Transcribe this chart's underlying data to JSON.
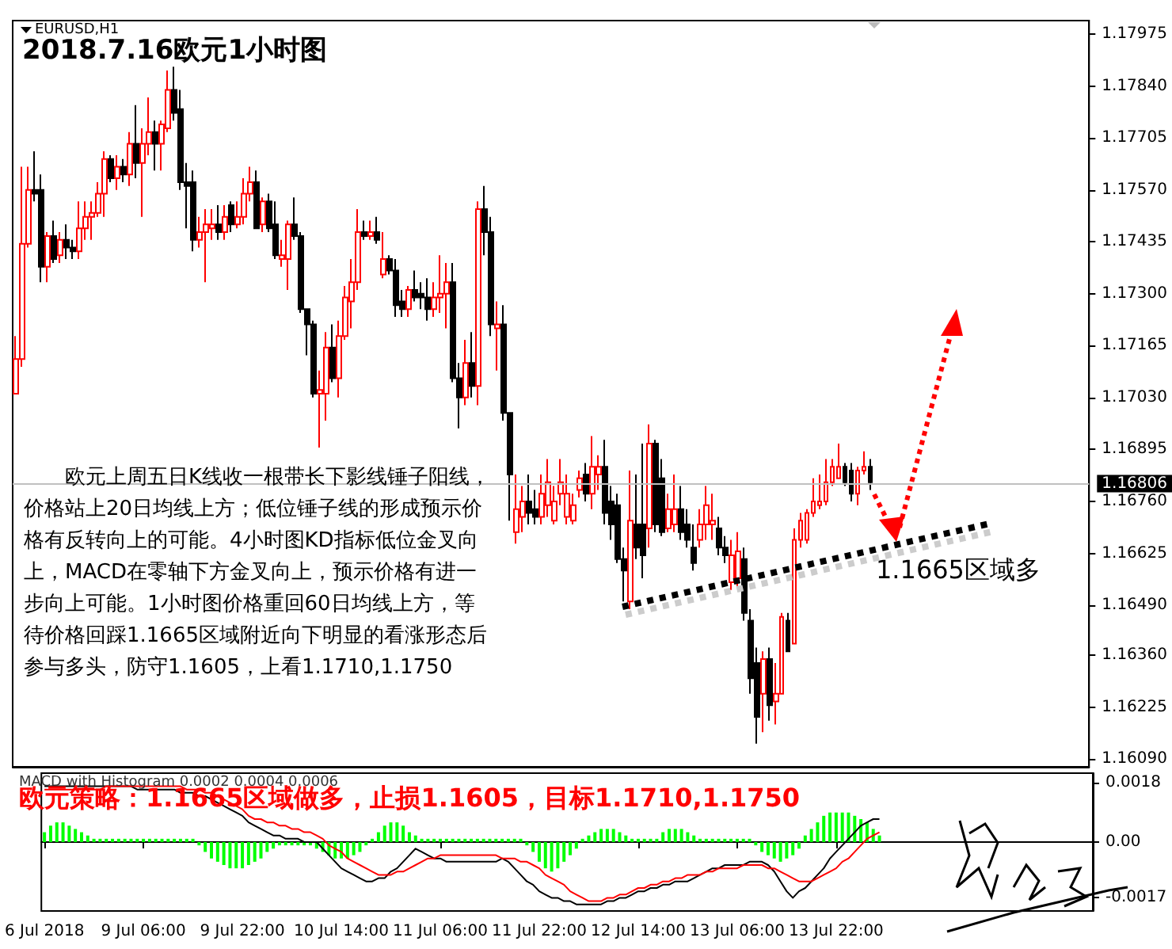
{
  "chart_data": [
    {
      "type": "candlestick",
      "title": "2018.7.16欧元1小时图",
      "categories": [
        null,
        null,
        null,
        null,
        null,
        null,
        null,
        null,
        null,
        null,
        null,
        null,
        null,
        null,
        null,
        null,
        null,
        null,
        null,
        null,
        null,
        null,
        null,
        null,
        null,
        null,
        null,
        null,
        null,
        null,
        null,
        null,
        null,
        null,
        null,
        null,
        null,
        null,
        null,
        null,
        null,
        null,
        null,
        null,
        null,
        null,
        null,
        null,
        null,
        null,
        null,
        null,
        null,
        null,
        null,
        null,
        null,
        null,
        null,
        null,
        null,
        null,
        null,
        null,
        null,
        null,
        null,
        null,
        null,
        null,
        null,
        null,
        null,
        null,
        null,
        null,
        null,
        null,
        null,
        null,
        null,
        null,
        null,
        null,
        null,
        null,
        null,
        null,
        null,
        null,
        null,
        null,
        null,
        null,
        null,
        null,
        null,
        null,
        null,
        null,
        null,
        null,
        null,
        null,
        null,
        null,
        null,
        null,
        null,
        null,
        null,
        null,
        null,
        null,
        null,
        null,
        null,
        null,
        null,
        null,
        null,
        null,
        null,
        null,
        null,
        null,
        null,
        null,
        null,
        null,
        null,
        null,
        null,
        null,
        null,
        null,
        null,
        null,
        null,
        null,
        null,
        null,
        null,
        null,
        null,
        null,
        null,
        null,
        null,
        null,
        null,
        null,
        null,
        null,
        null,
        null,
        null,
        null,
        null,
        null,
        null,
        null,
        null,
        null,
        null,
        null,
        null,
        null,
        null,
        null
      ],
      "ohlc": [
        [
          1.1704,
          1.1719,
          1.1704,
          1.1713
        ],
        [
          1.1713,
          1.1763,
          1.1711,
          1.1743
        ],
        [
          1.1743,
          1.1763,
          1.1742,
          1.1757
        ],
        [
          1.1757,
          1.1767,
          1.1754,
          1.1756
        ],
        [
          1.1757,
          1.1761,
          1.1733,
          1.1737
        ],
        [
          1.1737,
          1.1746,
          1.1733,
          1.1745
        ],
        [
          1.1745,
          1.1749,
          1.1738,
          1.1739
        ],
        [
          1.174,
          1.1746,
          1.1738,
          1.1744
        ],
        [
          1.1744,
          1.1748,
          1.1739,
          1.1742
        ],
        [
          1.1742,
          1.1744,
          1.1739,
          1.1741
        ],
        [
          1.1741,
          1.1754,
          1.1739,
          1.1747
        ],
        [
          1.1747,
          1.1754,
          1.1744,
          1.175
        ],
        [
          1.175,
          1.1754,
          1.1744,
          1.1751
        ],
        [
          1.1751,
          1.1759,
          1.175,
          1.1756
        ],
        [
          1.1756,
          1.1767,
          1.175,
          1.1765
        ],
        [
          1.1765,
          1.1766,
          1.1759,
          1.176
        ],
        [
          1.176,
          1.1766,
          1.1757,
          1.1763
        ],
        [
          1.1763,
          1.1765,
          1.1759,
          1.1761
        ],
        [
          1.1761,
          1.1772,
          1.1758,
          1.1769
        ],
        [
          1.1769,
          1.1779,
          1.176,
          1.1764
        ],
        [
          1.1764,
          1.1773,
          1.175,
          1.1769
        ],
        [
          1.1769,
          1.1781,
          1.1766,
          1.1772
        ],
        [
          1.1772,
          1.1775,
          1.1762,
          1.1769
        ],
        [
          1.1769,
          1.1775,
          1.1762,
          1.1774
        ],
        [
          1.1773,
          1.1788,
          1.1772,
          1.1783
        ],
        [
          1.1783,
          1.1789,
          1.1775,
          1.1777
        ],
        [
          1.1778,
          1.1783,
          1.1757,
          1.1759
        ],
        [
          1.1759,
          1.1764,
          1.1747,
          1.1758
        ],
        [
          1.1759,
          1.1762,
          1.1741,
          1.1744
        ],
        [
          1.1744,
          1.175,
          1.1742,
          1.1746
        ],
        [
          1.1746,
          1.1752,
          1.1733,
          1.1748
        ],
        [
          1.1747,
          1.1752,
          1.1744,
          1.1748
        ],
        [
          1.1748,
          1.1753,
          1.1744,
          1.1746
        ],
        [
          1.1746,
          1.1753,
          1.1744,
          1.175
        ],
        [
          1.1753,
          1.1754,
          1.1746,
          1.1748
        ],
        [
          1.1748,
          1.1754,
          1.1747,
          1.175
        ],
        [
          1.175,
          1.176,
          1.1748,
          1.1756
        ],
        [
          1.1756,
          1.1763,
          1.1754,
          1.1759
        ],
        [
          1.1759,
          1.1762,
          1.1747,
          1.1747
        ],
        [
          1.1748,
          1.1755,
          1.1746,
          1.1754
        ],
        [
          1.1754,
          1.1756,
          1.1746,
          1.1747
        ],
        [
          1.1748,
          1.1754,
          1.1739,
          1.174
        ],
        [
          1.1739,
          1.1744,
          1.1737,
          1.174
        ],
        [
          1.1739,
          1.1749,
          1.1731,
          1.1748
        ],
        [
          1.1748,
          1.1755,
          1.1744,
          1.1745
        ],
        [
          1.1745,
          1.1746,
          1.1725,
          1.1726
        ],
        [
          1.1726,
          1.1726,
          1.1714,
          1.1722
        ],
        [
          1.1722,
          1.1723,
          1.1703,
          1.1704
        ],
        [
          1.1704,
          1.171,
          1.169,
          1.1705
        ],
        [
          1.1704,
          1.172,
          1.1697,
          1.1716
        ],
        [
          1.1716,
          1.1722,
          1.1707,
          1.1708
        ],
        [
          1.1708,
          1.1723,
          1.1703,
          1.1719
        ],
        [
          1.1719,
          1.1732,
          1.1718,
          1.1729
        ],
        [
          1.1728,
          1.1739,
          1.1721,
          1.1733
        ],
        [
          1.1733,
          1.1752,
          1.1731,
          1.1746
        ],
        [
          1.1746,
          1.1749,
          1.1744,
          1.1745
        ],
        [
          1.1745,
          1.1749,
          1.1744,
          1.1746
        ],
        [
          1.1746,
          1.175,
          1.1743,
          1.1744
        ],
        [
          1.1735,
          1.1746,
          1.1734,
          1.1739
        ],
        [
          1.1739,
          1.174,
          1.1735,
          1.1736
        ],
        [
          1.1736,
          1.1739,
          1.1724,
          1.1727
        ],
        [
          1.1728,
          1.1731,
          1.1724,
          1.1726
        ],
        [
          1.1726,
          1.1732,
          1.1724,
          1.1731
        ],
        [
          1.1731,
          1.1736,
          1.1728,
          1.1729
        ],
        [
          1.173,
          1.1733,
          1.1726,
          1.1729
        ],
        [
          1.1729,
          1.1734,
          1.1723,
          1.1726
        ],
        [
          1.1726,
          1.1733,
          1.1724,
          1.1729
        ],
        [
          1.1729,
          1.174,
          1.1725,
          1.173
        ],
        [
          1.173,
          1.1738,
          1.1721,
          1.1733
        ],
        [
          1.1733,
          1.1738,
          1.1707,
          1.1708
        ],
        [
          1.1708,
          1.1712,
          1.1695,
          1.1703
        ],
        [
          1.1703,
          1.1718,
          1.1701,
          1.1712
        ],
        [
          1.1712,
          1.172,
          1.1703,
          1.1706
        ],
        [
          1.1706,
          1.1754,
          1.1701,
          1.1752
        ],
        [
          1.1752,
          1.1758,
          1.174,
          1.1746
        ],
        [
          1.1746,
          1.175,
          1.1719,
          1.1722
        ],
        [
          1.1721,
          1.1728,
          1.171,
          1.1722
        ],
        [
          1.1722,
          1.1727,
          1.1697,
          1.1699
        ],
        [
          1.1699,
          1.1699,
          1.1671,
          1.1683
        ],
        [
          1.1668,
          1.1683,
          1.1665,
          1.1674
        ],
        [
          1.1672,
          1.168,
          1.1668,
          1.1676
        ],
        [
          1.1676,
          1.1683,
          1.167,
          1.1673
        ],
        [
          1.1674,
          1.1679,
          1.167,
          1.1672
        ],
        [
          1.1672,
          1.1683,
          1.167,
          1.1678
        ],
        [
          1.1675,
          1.1687,
          1.1672,
          1.1681
        ],
        [
          1.1671,
          1.168,
          1.167,
          1.1676
        ],
        [
          1.1678,
          1.1687,
          1.1675,
          1.1681
        ],
        [
          1.1672,
          1.1683,
          1.167,
          1.1678
        ],
        [
          1.1671,
          1.1678,
          1.167,
          1.1675
        ],
        [
          1.1679,
          1.1684,
          1.1677,
          1.1682
        ],
        [
          1.1683,
          1.1686,
          1.1676,
          1.1678
        ],
        [
          1.1678,
          1.1693,
          1.1674,
          1.1685
        ],
        [
          1.1683,
          1.1688,
          1.1679,
          1.1685
        ],
        [
          1.1685,
          1.1692,
          1.167,
          1.1673
        ],
        [
          1.1676,
          1.168,
          1.1666,
          1.167
        ],
        [
          1.1675,
          1.1678,
          1.166,
          1.1661
        ],
        [
          1.1661,
          1.1664,
          1.165,
          1.1658
        ],
        [
          1.165,
          1.1684,
          1.1648,
          1.1671
        ],
        [
          1.167,
          1.1683,
          1.1661,
          1.1664
        ],
        [
          1.167,
          1.1691,
          1.1656,
          1.1662
        ],
        [
          1.1669,
          1.1696,
          1.1664,
          1.1691
        ],
        [
          1.1691,
          1.1692,
          1.1668,
          1.167
        ],
        [
          1.1682,
          1.1687,
          1.1667,
          1.1668
        ],
        [
          1.1669,
          1.1678,
          1.1668,
          1.1674
        ],
        [
          1.167,
          1.1683,
          1.1668,
          1.1674
        ],
        [
          1.1674,
          1.168,
          1.1666,
          1.1668
        ],
        [
          1.167,
          1.1674,
          1.1664,
          1.1666
        ],
        [
          1.1664,
          1.167,
          1.1658,
          1.166
        ],
        [
          1.1666,
          1.1674,
          1.1664,
          1.167
        ],
        [
          1.167,
          1.168,
          1.1666,
          1.1675
        ],
        [
          1.167,
          1.1678,
          1.1666,
          1.1671
        ],
        [
          1.1669,
          1.1672,
          1.1662,
          1.1664
        ],
        [
          1.1664,
          1.1667,
          1.166,
          1.1662
        ],
        [
          1.1655,
          1.1666,
          1.1653,
          1.1662
        ],
        [
          1.1656,
          1.1668,
          1.1654,
          1.1663
        ],
        [
          1.1661,
          1.1664,
          1.1645,
          1.1647
        ],
        [
          1.1645,
          1.1648,
          1.1626,
          1.163
        ],
        [
          1.1634,
          1.1638,
          1.1613,
          1.162
        ],
        [
          1.1626,
          1.1637,
          1.1616,
          1.1635
        ],
        [
          1.1635,
          1.1638,
          1.1619,
          1.1623
        ],
        [
          1.1624,
          1.1634,
          1.1618,
          1.1626
        ],
        [
          1.1626,
          1.1647,
          1.1626,
          1.1646
        ],
        [
          1.1645,
          1.1647,
          1.1637,
          1.1637
        ],
        [
          1.1639,
          1.1669,
          1.1639,
          1.1666
        ],
        [
          1.1666,
          1.1673,
          1.1664,
          1.1671
        ],
        [
          1.1666,
          1.1674,
          1.1665,
          1.1673
        ],
        [
          1.1673,
          1.1682,
          1.1672,
          1.1676
        ],
        [
          1.1675,
          1.1683,
          1.1674,
          1.1676
        ],
        [
          1.1676,
          1.1687,
          1.1675,
          1.1681
        ],
        [
          1.1681,
          1.1687,
          1.168,
          1.1685
        ],
        [
          1.1682,
          1.1691,
          1.1682,
          1.1685
        ],
        [
          1.1685,
          1.1686,
          1.168,
          1.1681
        ],
        [
          1.1684,
          1.1686,
          1.1676,
          1.1678
        ],
        [
          1.1678,
          1.1685,
          1.1675,
          1.1684
        ],
        [
          1.1684,
          1.1689,
          1.1683,
          1.1685
        ],
        [
          1.1685,
          1.1687,
          1.1679,
          1.1681
        ],
        null,
        null,
        null,
        null,
        null,
        null,
        null,
        null,
        null,
        null,
        null,
        null,
        null,
        null,
        null,
        null,
        null,
        null,
        null,
        null,
        null,
        null,
        null,
        null,
        null,
        null,
        null,
        null,
        null,
        null,
        null,
        null,
        null,
        null
      ],
      "colors": [
        "#ff0000",
        "#ff0000",
        "#ff0000",
        "#000000",
        "#000000",
        "#ff0000",
        "#000000",
        "#ff0000",
        "#000000",
        "#000000",
        "#ff0000",
        "#ff0000",
        "#ff0000",
        "#ff0000",
        "#ff0000",
        "#000000",
        "#ff0000",
        "#000000",
        "#ff0000",
        "#000000",
        "#ff0000",
        "#ff0000",
        "#000000",
        "#ff0000",
        "#ff0000",
        "#000000",
        "#000000",
        "#000000",
        "#000000",
        "#ff0000",
        "#ff0000",
        "#ff0000",
        "#000000",
        "#ff0000",
        "#000000",
        "#ff0000",
        "#ff0000",
        "#ff0000",
        "#000000",
        "#ff0000",
        "#000000",
        "#000000",
        "#ff0000",
        "#ff0000",
        "#000000",
        "#000000",
        "#000000",
        "#000000",
        "#ff0000",
        "#ff0000",
        "#000000",
        "#ff0000",
        "#ff0000",
        "#ff0000",
        "#ff0000",
        "#000000",
        "#ff0000",
        "#000000",
        "#ff0000",
        "#000000",
        "#000000",
        "#000000",
        "#ff0000",
        "#000000",
        "#000000",
        "#000000",
        "#ff0000",
        "#ff0000",
        "#ff0000",
        "#000000",
        "#000000",
        "#ff0000",
        "#000000",
        "#ff0000",
        "#000000",
        "#000000",
        "#ff0000",
        "#000000",
        "#000000",
        "#ff0000",
        "#ff0000",
        "#000000",
        "#000000",
        "#ff0000",
        "#ff0000",
        "#ff0000",
        "#ff0000",
        "#ff0000",
        "#ff0000",
        "#ff0000",
        "#000000",
        "#ff0000",
        "#ff0000",
        "#000000",
        "#000000",
        "#000000",
        "#000000",
        "#ff0000",
        "#000000",
        "#000000",
        "#ff0000",
        "#000000",
        "#000000",
        "#ff0000",
        "#ff0000",
        "#000000",
        "#000000",
        "#000000",
        "#ff0000",
        "#ff0000",
        "#ff0000",
        "#000000",
        "#000000",
        "#ff0000",
        "#ff0000",
        "#000000",
        "#000000",
        "#000000",
        "#ff0000",
        "#000000",
        "#ff0000",
        "#ff0000",
        "#000000",
        "#ff0000",
        "#ff0000",
        "#ff0000",
        "#ff0000",
        "#ff0000",
        "#ff0000",
        "#ff0000",
        "#ff0000",
        "#000000",
        "#000000",
        "#ff0000",
        "#ff0000",
        "#000000",
        null,
        null,
        null,
        null,
        null,
        null,
        null,
        null,
        null,
        null,
        null,
        null,
        null,
        null,
        null,
        null,
        null,
        null,
        null,
        null,
        null,
        null,
        null,
        null,
        null,
        null,
        null,
        null,
        null,
        null,
        null,
        null,
        null,
        null
      ],
      "ylim": [
        1.1607,
        1.1801
      ],
      "yticks": [
        1.17975,
        {
          "value": 1.1784,
          "label": "1.17840"
        },
        1.17705,
        {
          "value": 1.1757,
          "label": "1.17570"
        },
        1.17435,
        {
          "value": 1.173,
          "label": "1.17300"
        },
        1.17165,
        {
          "value": 1.1703,
          "label": "1.17030"
        },
        1.16895,
        {
          "value": 1.1676,
          "label": "1.16760"
        },
        1.16625,
        {
          "value": 1.1649,
          "label": "1.16490"
        },
        {
          "value": 1.1636,
          "label": "1.16360"
        },
        1.16225,
        {
          "value": 1.1609,
          "label": "1.16090"
        }
      ],
      "tick_labels": "y",
      "ref_lines": [
        {
          "axis": "y",
          "value": 1.16806,
          "label": "1.16806",
          "color": "#c0c0c0"
        }
      ],
      "annotations": [
        "EURUSD,H1",
        "欧元上周五日K线收一根带长下影线锤子阳线，价格站上20日均线上方；低位锤子线的形成预示价格有反转向上的可能。4小时图KD指标低位金叉向上，MACD在零轴下方金叉向上，预示价格有进一步向上可能。1小时图价格重回60日均线上方，等待价格回踩1.1665区域附近向下明显的看涨形态后参与多头，防守1.1605，上看1.1710,1.1750",
        "1.1665区域多"
      ]
    },
    {
      "type": "bar",
      "categories": [
        "6 Jul 2018",
        null,
        null,
        null,
        null,
        null,
        null,
        null,
        null,
        null,
        null,
        null,
        null,
        null,
        null,
        null,
        "9 Jul 06:00",
        null,
        null,
        null,
        null,
        null,
        null,
        null,
        null,
        null,
        null,
        null,
        null,
        null,
        null,
        null,
        "9 Jul 22:00",
        null,
        null,
        null,
        null,
        null,
        null,
        null,
        null,
        null,
        null,
        null,
        null,
        null,
        null,
        null,
        "10 Jul 14:00",
        null,
        null,
        null,
        null,
        null,
        null,
        null,
        null,
        null,
        null,
        null,
        null,
        null,
        null,
        null,
        "11 Jul 06:00",
        null,
        null,
        null,
        null,
        null,
        null,
        null,
        null,
        null,
        null,
        null,
        null,
        null,
        null,
        null,
        "11 Jul 22:00",
        null,
        null,
        null,
        null,
        null,
        null,
        null,
        null,
        null,
        null,
        null,
        null,
        null,
        null,
        null,
        "12 Jul 14:00",
        null,
        null,
        null,
        null,
        null,
        null,
        null,
        null,
        null,
        null,
        null,
        null,
        null,
        null,
        null,
        "13 Jul 06:00",
        null,
        null,
        null,
        null,
        null,
        null,
        null,
        null,
        null,
        null,
        null,
        null,
        null,
        null,
        null,
        "13 Jul 22:00",
        null,
        null,
        null,
        null,
        null,
        null,
        null,
        null,
        null,
        null,
        null,
        null,
        null,
        null,
        null,
        null,
        null,
        null,
        null,
        null,
        null,
        null,
        null,
        null,
        null,
        null,
        null,
        null,
        null,
        null,
        null,
        null,
        null,
        null,
        null,
        null,
        null,
        null,
        null,
        null,
        null
      ],
      "series": [
        {
          "type": "bar",
          "color": "#00ff00",
          "values": [
            0.0003,
            0.0005,
            0.0006,
            0.0006,
            0.0005,
            0.0004,
            0.0003,
            0.0002,
            0.0001,
            0.0001,
            0.0001,
            0.0001,
            0.0001,
            0.0001,
            0.0001,
            0.0001,
            0.0001,
            0.0001,
            0.0001,
            0.0001,
            0.0001,
            0.0001,
            0.0001,
            0.0001,
            0.0001,
            -0.0001,
            -0.0003,
            -0.0005,
            -0.0006,
            -0.0007,
            -0.0008,
            -0.0008,
            -0.0008,
            -0.0007,
            -0.0006,
            -0.0005,
            -0.0003,
            -0.0002,
            -0.0001,
            -0.0001,
            -0.0001,
            -0.0001,
            -0.0001,
            -0.0001,
            -0.0002,
            -0.0003,
            -0.0004,
            -0.0005,
            -0.0005,
            -0.0005,
            -0.0004,
            -0.0003,
            -0.0001,
            0.0001,
            0.0003,
            0.0005,
            0.0006,
            0.0006,
            0.0005,
            0.0003,
            0.0002,
            0.0001,
            0.0001,
            0.0001,
            0.0001,
            0.0001,
            0.0001,
            0.0001,
            0.0001,
            0.0001,
            0.0001,
            0.0001,
            0.0001,
            0.0001,
            0.0001,
            0.0001,
            0.0001,
            0.0001,
            -0.0001,
            -0.0003,
            -0.0006,
            -0.0008,
            -0.0009,
            -0.0008,
            -0.0006,
            -0.0004,
            -0.0002,
            0.0001,
            0.0002,
            0.0003,
            0.0004,
            0.0004,
            0.0004,
            0.0003,
            0.0002,
            0.0001,
            0.0001,
            0.0001,
            0.0001,
            0.0001,
            0.0003,
            0.0004,
            0.0004,
            0.0004,
            0.0003,
            0.0002,
            0.0001,
            0.0001,
            0.0001,
            0.0001,
            0.0001,
            0.0001,
            0.0001,
            0.0001,
            0.0001,
            -0.0001,
            -0.0003,
            -0.0004,
            -0.0005,
            -0.0006,
            -0.0005,
            -0.0004,
            -0.0002,
            0.0002,
            0.0004,
            0.0006,
            0.0008,
            0.0009,
            0.0009,
            0.0009,
            0.0009,
            0.0008,
            0.0007,
            0.0006,
            0.0004,
            0.0002,
            null,
            null,
            null,
            null,
            null,
            null,
            null,
            null,
            null,
            null,
            null,
            null,
            null,
            null,
            null,
            null,
            null,
            null,
            null,
            null,
            null,
            null,
            null,
            null,
            null,
            null,
            null,
            null,
            null,
            null,
            null,
            null,
            null,
            null
          ]
        },
        {
          "type": "line",
          "color": "#000000",
          "values": [
            0.0017,
            0.0017,
            0.0017,
            0.0017,
            0.0017,
            0.0017,
            0.0017,
            0.0017,
            0.0017,
            0.0017,
            0.0017,
            0.0017,
            0.0017,
            0.0017,
            0.0017,
            0.0016,
            0.0016,
            0.0016,
            0.0016,
            0.0016,
            0.0016,
            0.0016,
            0.0015,
            0.0015,
            0.0015,
            0.0014,
            0.0014,
            0.0013,
            0.0012,
            0.0011,
            0.001,
            0.0009,
            0.0008,
            0.0006,
            0.0005,
            0.0004,
            0.0003,
            0.0002,
            0.0002,
            0.0001,
            0.0001,
            0.0001,
            0,
            0,
            0,
            -0.0002,
            -0.0004,
            -0.0006,
            -0.0008,
            -0.0009,
            -0.001,
            -0.0011,
            -0.0012,
            -0.0012,
            -0.0011,
            -0.0011,
            -0.0009,
            -0.0008,
            -0.0006,
            -0.0004,
            -0.0002,
            -0.0003,
            -0.0004,
            -0.0005,
            -0.0005,
            -0.0006,
            -0.0006,
            -0.0006,
            -0.0006,
            -0.0006,
            -0.0006,
            -0.0006,
            -0.0006,
            -0.0006,
            -0.0005,
            -0.0006,
            -0.0008,
            -0.001,
            -0.0012,
            -0.0013,
            -0.0015,
            -0.0016,
            -0.0017,
            -0.0017,
            -0.0018,
            -0.0018,
            -0.0019,
            -0.0019,
            -0.0019,
            -0.0019,
            -0.0019,
            -0.0018,
            -0.0018,
            -0.0017,
            -0.0017,
            -0.0016,
            -0.0015,
            -0.0015,
            -0.0014,
            -0.0014,
            -0.0013,
            -0.0013,
            -0.0012,
            -0.0012,
            -0.0012,
            -0.0011,
            -0.001,
            -0.0009,
            -0.0008,
            -0.0008,
            -0.0007,
            -0.0007,
            -0.0007,
            -0.0007,
            -0.0006,
            -0.0006,
            -0.0006,
            -0.0007,
            -0.0009,
            -0.0012,
            -0.0015,
            -0.0017,
            -0.0015,
            -0.0014,
            -0.0012,
            -0.001,
            -0.0008,
            -0.0005,
            -0.0003,
            -0.0001,
            0.0001,
            0.0003,
            0.0005,
            0.0006,
            0.0007,
            0.0007,
            null,
            null,
            null,
            null,
            null,
            null,
            null,
            null,
            null,
            null,
            null,
            null,
            null,
            null,
            null,
            null,
            null,
            null,
            null,
            null,
            null,
            null,
            null,
            null,
            null,
            null,
            null,
            null,
            null,
            null,
            null,
            null,
            null,
            null
          ]
        },
        {
          "type": "line",
          "color": "#ff0000",
          "values": [
            0.0016,
            0.0016,
            0.0016,
            0.0016,
            0.0016,
            0.0016,
            0.0016,
            0.0016,
            0.0016,
            0.0016,
            0.0017,
            0.0017,
            0.0017,
            0.0017,
            0.0017,
            0.0017,
            0.0017,
            0.0017,
            0.0017,
            0.0017,
            0.0017,
            0.0017,
            0.0017,
            0.0016,
            0.0016,
            0.0016,
            0.0015,
            0.0015,
            0.0014,
            0.0013,
            0.0012,
            0.0011,
            0.001,
            0.0008,
            0.0007,
            0.0007,
            0.0006,
            0.0006,
            0.0005,
            0.0005,
            0.0004,
            0.0004,
            0.0003,
            0.0003,
            0.0002,
            0.0001,
            -0.0001,
            -0.0002,
            -0.0003,
            -0.0005,
            -0.0006,
            -0.0007,
            -0.0008,
            -0.0009,
            -0.001,
            -0.001,
            -0.001,
            -0.0009,
            -0.0009,
            -0.0008,
            -0.0007,
            -0.0006,
            -0.0005,
            -0.0005,
            -0.0004,
            -0.0004,
            -0.0004,
            -0.0004,
            -0.0004,
            -0.0004,
            -0.0004,
            -0.0004,
            -0.0004,
            -0.0004,
            -0.0005,
            -0.0005,
            -0.0005,
            -0.0006,
            -0.0006,
            -0.0007,
            -0.0008,
            -0.001,
            -0.0011,
            -0.0012,
            -0.0013,
            -0.0015,
            -0.0016,
            -0.0017,
            -0.0018,
            -0.0018,
            -0.0018,
            -0.0017,
            -0.0017,
            -0.0016,
            -0.0016,
            -0.0015,
            -0.0014,
            -0.0014,
            -0.0013,
            -0.0013,
            -0.0012,
            -0.0012,
            -0.0011,
            -0.0011,
            -0.001,
            -0.001,
            -0.001,
            -0.0009,
            -0.0009,
            -0.0008,
            -0.0008,
            -0.0008,
            -0.0008,
            -0.0007,
            -0.0007,
            -0.0007,
            -0.0007,
            -0.0008,
            -0.0008,
            -0.0009,
            -0.001,
            -0.0011,
            -0.0012,
            -0.0012,
            -0.0012,
            -0.0011,
            -0.001,
            -0.0009,
            -0.0008,
            -0.0006,
            -0.0005,
            -0.0003,
            -0.0001,
            0.0001,
            0.0002,
            0.0003,
            null,
            null,
            null,
            null,
            null,
            null,
            null,
            null,
            null,
            null,
            null,
            null,
            null,
            null,
            null,
            null,
            null,
            null,
            null,
            null,
            null,
            null,
            null,
            null,
            null,
            null,
            null,
            null,
            null,
            null,
            null,
            null,
            null,
            null
          ]
        }
      ],
      "ylim": [
        -0.0021,
        0.0021
      ],
      "yticks": [
        0.0018,
        {
          "value": 0,
          "label": "0.00"
        },
        -0.0017
      ],
      "marker": "none",
      "annotations": [
        "MACD with Histogram 0.0002 0.0004 0.0006",
        "欧元策略：1.1665区域做多，止损1.1605，目标1.1710,1.1750"
      ]
    }
  ]
}
